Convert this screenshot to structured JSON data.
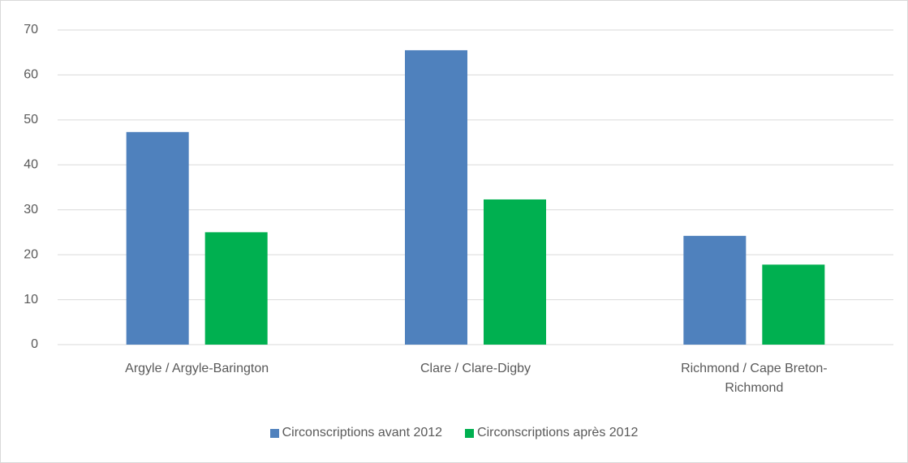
{
  "chart_data": {
    "type": "bar",
    "categories": [
      "Argyle / Argyle-Barington",
      "Clare / Clare-Digby",
      "Richmond / Cape Breton-Richmond"
    ],
    "series": [
      {
        "name": "Circonscriptions avant 2012",
        "color": "#4f81bd",
        "values": [
          47.3,
          65.5,
          24.2
        ]
      },
      {
        "name": "Circonscriptions après 2012",
        "color": "#00b050",
        "values": [
          25,
          32.3,
          17.8
        ]
      }
    ],
    "ylim": [
      0,
      70
    ],
    "yticks": [
      0,
      10,
      20,
      30,
      40,
      50,
      60,
      70
    ],
    "grid": true,
    "legend": "bottom"
  }
}
